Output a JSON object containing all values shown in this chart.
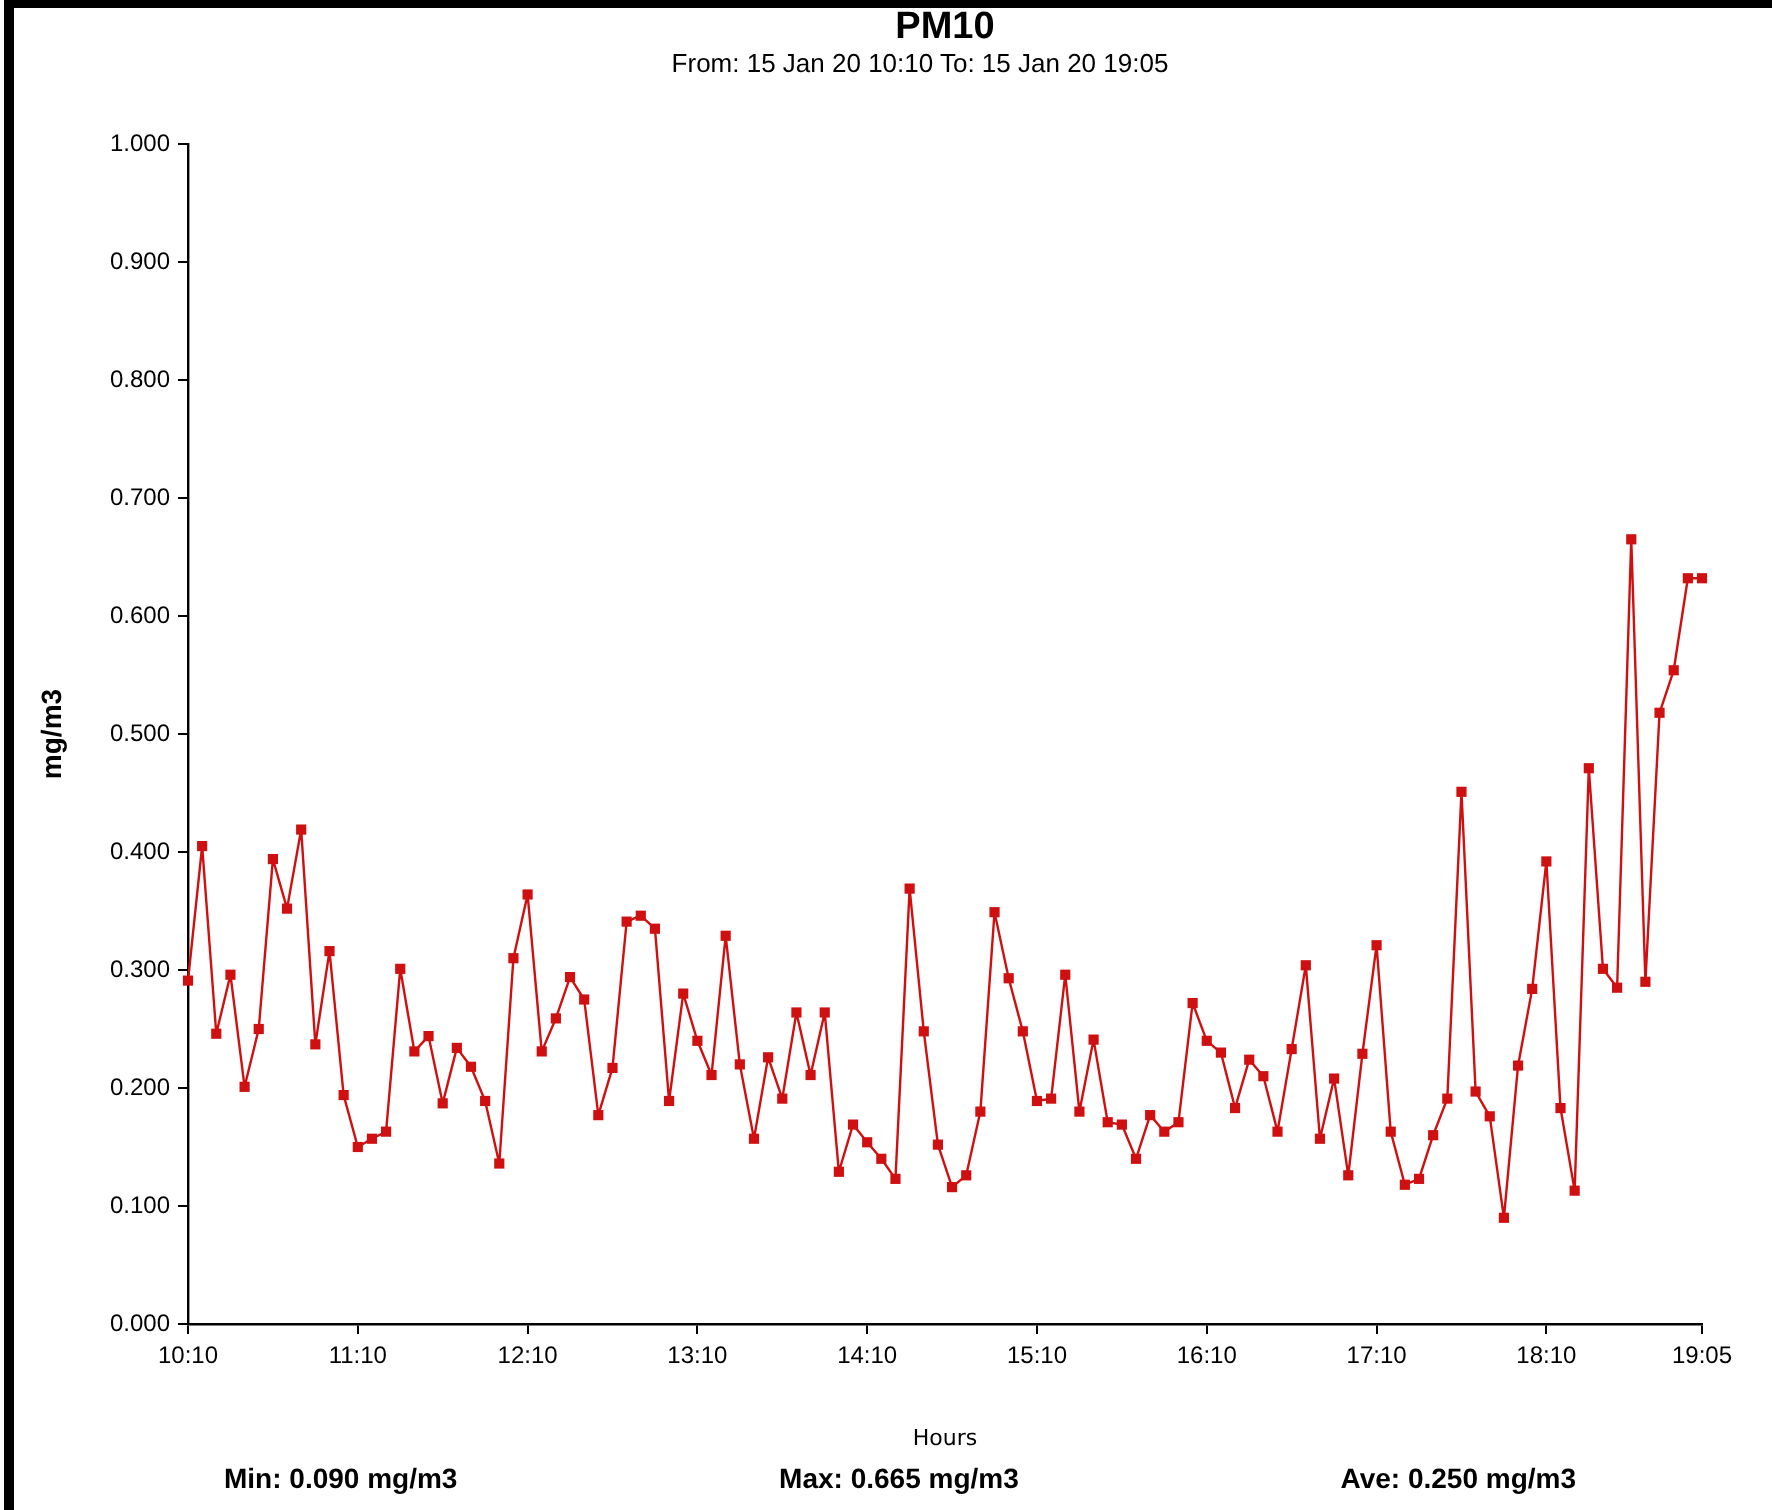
{
  "chart_data": {
    "type": "line",
    "title": "PM10",
    "subtitle": "From: 15 Jan 20 10:10 To: 15 Jan 20 19:05",
    "xlabel": "Hours",
    "ylabel": "mg/m3",
    "annotations": [
      "Min: 0.090 mg/m3",
      "Max: 0.665 mg/m3",
      "Ave: 0.250 mg/m3"
    ],
    "x": [
      10.1667,
      10.25,
      10.3333,
      10.4167,
      10.5,
      10.5833,
      10.6667,
      10.75,
      10.8333,
      10.9167,
      11,
      11.0833,
      11.1667,
      11.25,
      11.3333,
      11.4167,
      11.5,
      11.5833,
      11.6667,
      11.75,
      11.8333,
      11.9167,
      12,
      12.0833,
      12.1667,
      12.25,
      12.3333,
      12.4167,
      12.5,
      12.5833,
      12.6667,
      12.75,
      12.8333,
      12.9167,
      13,
      13.0833,
      13.1667,
      13.25,
      13.3333,
      13.4167,
      13.5,
      13.5833,
      13.6667,
      13.75,
      13.8333,
      13.9167,
      14,
      14.0833,
      14.1667,
      14.25,
      14.3333,
      14.4167,
      14.5,
      14.5833,
      14.6667,
      14.75,
      14.8333,
      14.9167,
      15,
      15.0833,
      15.1667,
      15.25,
      15.3333,
      15.4167,
      15.5,
      15.5833,
      15.6667,
      15.75,
      15.8333,
      15.9167,
      16,
      16.0833,
      16.1667,
      16.25,
      16.3333,
      16.4167,
      16.5,
      16.5833,
      16.6667,
      16.75,
      16.8333,
      16.9167,
      17,
      17.0833,
      17.1667,
      17.25,
      17.3333,
      17.4167,
      17.5,
      17.5833,
      17.6667,
      17.75,
      17.8333,
      17.9167,
      18,
      18.0833,
      18.1667,
      18.25,
      18.3333,
      18.4167,
      18.5,
      18.5833,
      18.6667,
      18.75,
      18.8333,
      18.9167,
      19,
      19.0833
    ],
    "series": [
      {
        "color": "#d01010",
        "values": [
          0.291,
          0.405,
          0.246,
          0.296,
          0.201,
          0.25,
          0.394,
          0.352,
          0.419,
          0.237,
          0.316,
          0.194,
          0.15,
          0.157,
          0.163,
          0.301,
          0.231,
          0.244,
          0.187,
          0.234,
          0.218,
          0.189,
          0.136,
          0.31,
          0.364,
          0.231,
          0.259,
          0.294,
          0.275,
          0.177,
          0.217,
          0.341,
          0.346,
          0.335,
          0.189,
          0.28,
          0.24,
          0.211,
          0.329,
          0.22,
          0.157,
          0.226,
          0.191,
          0.264,
          0.211,
          0.264,
          0.129,
          0.169,
          0.154,
          0.14,
          0.123,
          0.369,
          0.248,
          0.152,
          0.116,
          0.126,
          0.18,
          0.349,
          0.293,
          0.248,
          0.189,
          0.191,
          0.296,
          0.18,
          0.241,
          0.171,
          0.169,
          0.14,
          0.177,
          0.163,
          0.171,
          0.272,
          0.24,
          0.23,
          0.183,
          0.224,
          0.21,
          0.163,
          0.233,
          0.304,
          0.157,
          0.208,
          0.126,
          0.229,
          0.321,
          0.163,
          0.118,
          0.123,
          0.16,
          0.191,
          0.451,
          0.197,
          0.176,
          0.09,
          0.219,
          0.284,
          0.392,
          0.183,
          0.113,
          0.471,
          0.301,
          0.285,
          0.665,
          0.29,
          0.518,
          0.554,
          0.632,
          0.632
        ]
      }
    ],
    "xlim": [
      10.1667,
      19.0833
    ],
    "xticks": [
      {
        "value": 10.1667,
        "label": "10:10"
      },
      {
        "value": 11.1667,
        "label": "11:10"
      },
      {
        "value": 12.1667,
        "label": "12:10"
      },
      {
        "value": 13.1667,
        "label": "13:10"
      },
      {
        "value": 14.1667,
        "label": "14:10"
      },
      {
        "value": 15.1667,
        "label": "15:10"
      },
      {
        "value": 16.1667,
        "label": "16:10"
      },
      {
        "value": 17.1667,
        "label": "17:10"
      },
      {
        "value": 18.1667,
        "label": "18:10"
      },
      {
        "value": 19.0833,
        "label": "19:05"
      }
    ],
    "ylim": [
      0,
      1
    ],
    "yticks": [
      {
        "value": 0,
        "label": "0.000"
      },
      {
        "value": 0.1,
        "label": "0.100"
      },
      {
        "value": 0.2,
        "label": "0.200"
      },
      {
        "value": 0.3,
        "label": "0.300"
      },
      {
        "value": 0.4,
        "label": "0.400"
      },
      {
        "value": 0.5,
        "label": "0.500"
      },
      {
        "value": 0.6,
        "label": "0.600"
      },
      {
        "value": 0.7,
        "label": "0.700"
      },
      {
        "value": 0.8,
        "label": "0.800"
      },
      {
        "value": 0.9,
        "label": "0.900"
      },
      {
        "value": 1,
        "label": "1.000"
      }
    ],
    "marker": "square",
    "line_style": "solid"
  }
}
